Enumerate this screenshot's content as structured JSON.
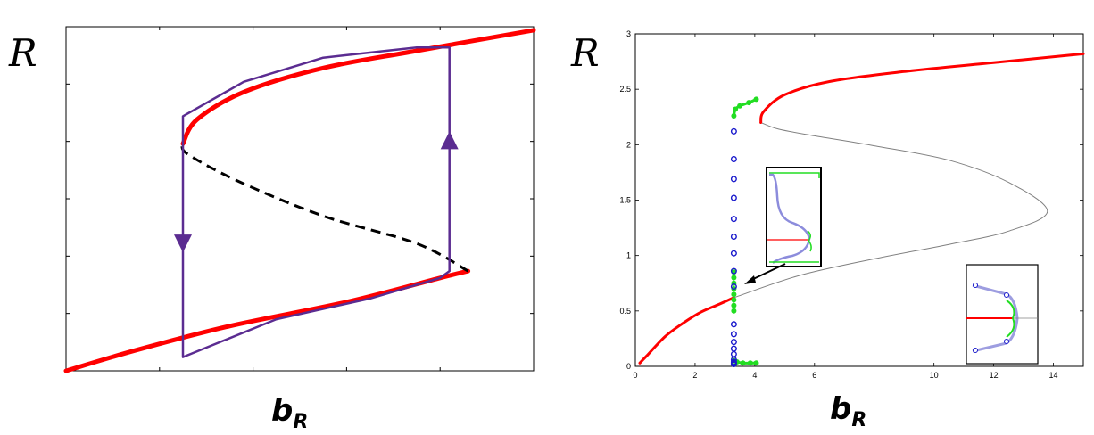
{
  "chart_data": [
    {
      "type": "line",
      "ylabel": "R",
      "xlabel_main": "b",
      "xlabel_sub": "R",
      "grid": false,
      "colors": {
        "stable": "#ff0000",
        "unstable": "#000000",
        "cycle": "#5b2c91",
        "axis": "#000000"
      },
      "series": [
        {
          "kind": "stable-lower",
          "x": [
            0.0,
            0.15,
            0.35,
            0.6,
            0.8,
            0.86
          ],
          "y": [
            0.0,
            0.06,
            0.13,
            0.2,
            0.27,
            0.29
          ]
        },
        {
          "kind": "unstable",
          "x": [
            0.86,
            0.75,
            0.55,
            0.37,
            0.26,
            0.25
          ],
          "y": [
            0.29,
            0.37,
            0.45,
            0.55,
            0.63,
            0.66
          ]
        },
        {
          "kind": "stable-upper",
          "x": [
            0.25,
            0.28,
            0.38,
            0.55,
            0.75,
            1.0
          ],
          "y": [
            0.66,
            0.73,
            0.81,
            0.88,
            0.93,
            0.99
          ]
        },
        {
          "kind": "hysteresis-loop",
          "x": [
            0.25,
            0.25,
            0.38,
            0.55,
            0.75,
            0.82,
            0.82,
            0.8,
            0.65,
            0.45,
            0.25,
            0.25
          ],
          "y": [
            0.68,
            0.74,
            0.84,
            0.91,
            0.94,
            0.94,
            0.29,
            0.27,
            0.21,
            0.15,
            0.04,
            0.68
          ]
        }
      ],
      "arrows": [
        {
          "direction": "down",
          "x": 0.25,
          "y": 0.37
        },
        {
          "direction": "up",
          "x": 0.82,
          "y": 0.67
        }
      ]
    },
    {
      "type": "line",
      "ylabel": "R",
      "xlabel_main": "b",
      "xlabel_sub": "R",
      "grid": false,
      "xlim": [
        0,
        15
      ],
      "ylim": [
        0,
        3
      ],
      "xticks": [
        "0",
        "2",
        "4",
        "6",
        "10",
        "12",
        "14"
      ],
      "xtick_values": [
        0,
        2,
        4,
        6,
        10,
        12,
        14
      ],
      "yticks": [
        "0",
        "0.5",
        "1",
        "1.5",
        "2",
        "2.5",
        "3"
      ],
      "ytick_values": [
        0,
        0.5,
        1,
        1.5,
        2,
        2.5,
        3
      ],
      "colors": {
        "stable": "#ff0000",
        "unstable": "#808080",
        "oscillation": "#22dd22",
        "markers": "#1a1acc"
      },
      "series": [
        {
          "kind": "stable-lower",
          "x": [
            0.15,
            0.4,
            1.0,
            1.6,
            2.2,
            2.8,
            3.3
          ],
          "y": [
            0.03,
            0.1,
            0.27,
            0.39,
            0.49,
            0.56,
            0.62
          ]
        },
        {
          "kind": "unstable",
          "x": [
            3.3,
            5.5,
            8.0,
            10.5,
            12.5,
            13.8,
            12.5,
            10.5,
            8.0,
            6.0,
            4.8,
            4.2
          ],
          "y": [
            0.62,
            0.82,
            0.97,
            1.1,
            1.22,
            1.4,
            1.66,
            1.86,
            1.99,
            2.08,
            2.14,
            2.2
          ]
        },
        {
          "kind": "stable-upper",
          "x": [
            4.2,
            4.3,
            5.0,
            6.5,
            9.0,
            12.0,
            15.0
          ],
          "y": [
            2.2,
            2.3,
            2.45,
            2.57,
            2.66,
            2.74,
            2.82
          ]
        },
        {
          "kind": "oscillation-max",
          "x": [
            3.3,
            3.35,
            3.5,
            3.8,
            4.05
          ],
          "y": [
            2.26,
            2.32,
            2.35,
            2.38,
            2.41
          ]
        },
        {
          "kind": "oscillation-min",
          "x": [
            3.3,
            3.4,
            3.6,
            3.85,
            4.05
          ],
          "y": [
            0.05,
            0.04,
            0.03,
            0.03,
            0.03
          ]
        },
        {
          "kind": "oscillation-middle",
          "x": [
            3.3,
            3.3,
            3.3,
            3.3,
            3.3,
            3.3,
            3.3,
            3.3
          ],
          "y": [
            0.5,
            0.55,
            0.6,
            0.65,
            0.7,
            0.75,
            0.8,
            0.85
          ]
        },
        {
          "kind": "period-markers",
          "x": [
            3.3,
            3.3,
            3.3,
            3.3,
            3.3,
            3.3,
            3.3,
            3.3,
            3.3,
            3.3,
            3.3,
            3.3,
            3.3,
            3.3,
            3.3,
            3.3,
            3.3,
            3.3
          ],
          "y": [
            2.12,
            1.87,
            1.69,
            1.52,
            1.33,
            1.17,
            1.02,
            0.86,
            0.72,
            0.38,
            0.29,
            0.22,
            0.16,
            0.11,
            0.06,
            0.03,
            0.02,
            0.04
          ]
        }
      ]
    }
  ]
}
